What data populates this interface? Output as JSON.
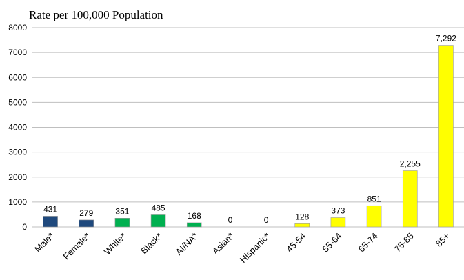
{
  "chart_data": {
    "type": "bar",
    "title": "Rate per 100,000 Population",
    "xlabel": "",
    "ylabel": "",
    "ylim": [
      0,
      8000
    ],
    "yticks": [
      0,
      1000,
      2000,
      3000,
      4000,
      5000,
      6000,
      7000,
      8000
    ],
    "grid": true,
    "legend": "none",
    "categories": [
      "Male*",
      "Female*",
      "White*",
      "Black*",
      "AI/NA*",
      "Asian*",
      "Hispanic*",
      "45-54",
      "55-64",
      "65-74",
      "75-85",
      "85+"
    ],
    "values": [
      431,
      279,
      351,
      485,
      168,
      0,
      0,
      128,
      373,
      851,
      2255,
      7292
    ],
    "data_labels": [
      "431",
      "279",
      "351",
      "485",
      "168",
      "0",
      "0",
      "128",
      "373",
      "851",
      "2,255",
      "7,292"
    ],
    "colors": [
      "#1F497D",
      "#1F497D",
      "#00B050",
      "#00B050",
      "#00B050",
      "#00B050",
      "#00B050",
      "#FFFF00",
      "#FFFF00",
      "#FFFF00",
      "#FFFF00",
      "#FFFF00"
    ],
    "bar_stroke": "#999999",
    "grid_color": "#BFBFBF"
  }
}
